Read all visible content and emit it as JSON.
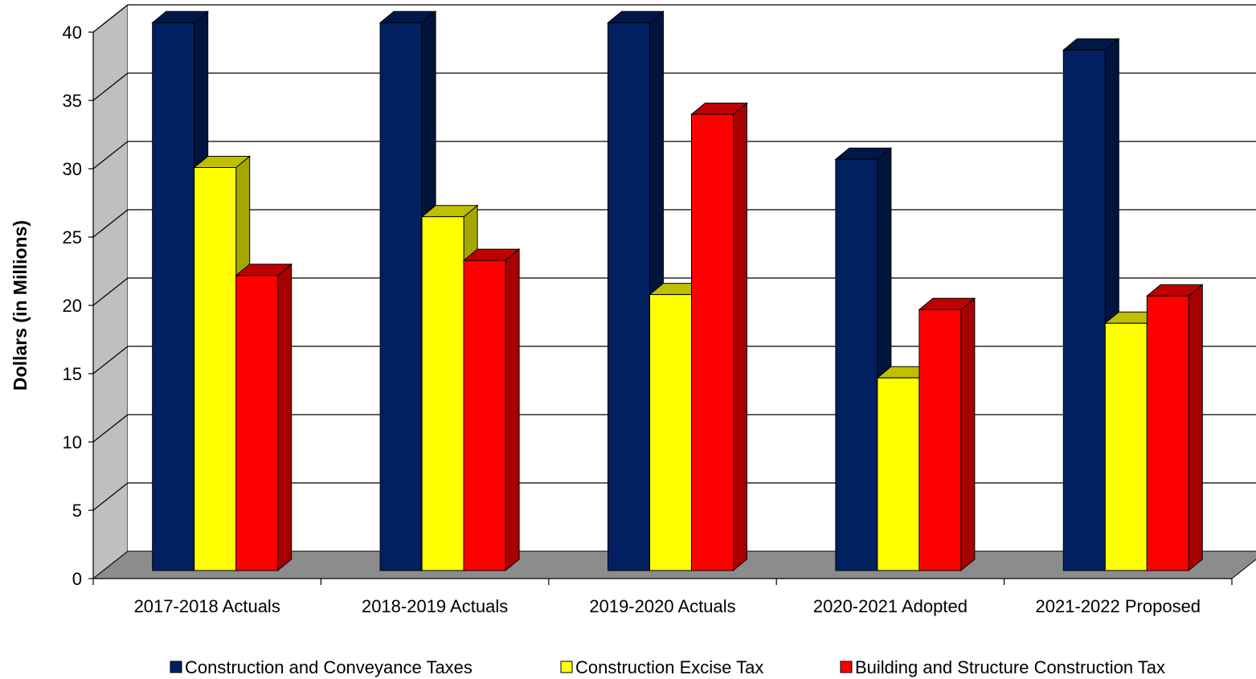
{
  "chart_data": {
    "type": "bar",
    "title": "",
    "xlabel": "",
    "ylabel": "Dollars (in Millions)",
    "ylim": [
      0,
      40
    ],
    "yticks": [
      0,
      5,
      10,
      15,
      20,
      25,
      30,
      35,
      40
    ],
    "grid": true,
    "three_d": true,
    "legend_position": "bottom",
    "categories": [
      "2017-2018 Actuals",
      "2018-2019 Actuals",
      "2019-2020 Actuals",
      "2020-2021 Adopted",
      "2021-2022 Proposed"
    ],
    "series": [
      {
        "name": "Construction and Conveyance Taxes",
        "color": "#002060",
        "values": [
          40.1,
          40.1,
          40.1,
          30.1,
          38.1
        ]
      },
      {
        "name": "Construction Excise Tax",
        "color": "#FFFF00",
        "values": [
          29.5,
          25.9,
          20.2,
          14.1,
          18.1
        ]
      },
      {
        "name": "Building and Structure Construction Tax",
        "color": "#FF0000",
        "values": [
          21.6,
          22.7,
          33.4,
          19.1,
          20.1
        ]
      }
    ]
  }
}
